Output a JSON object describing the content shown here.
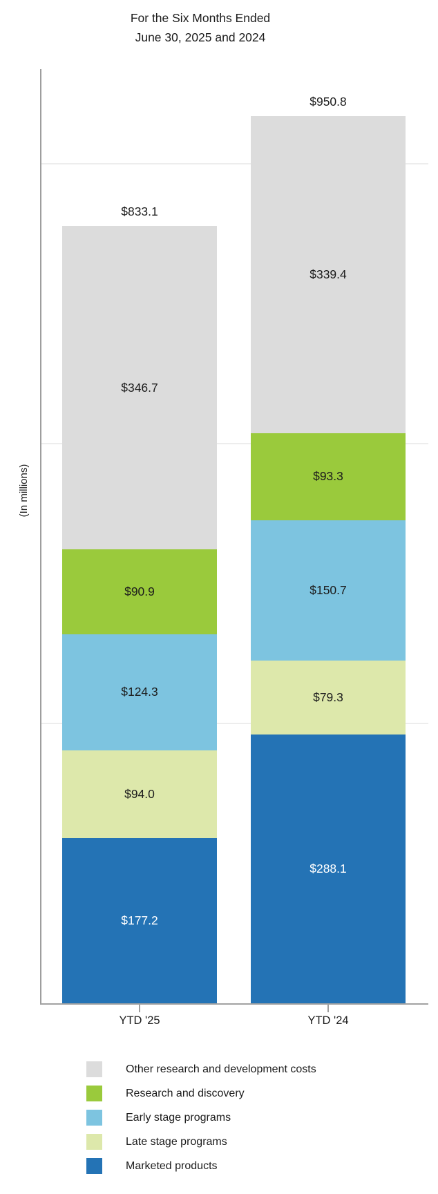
{
  "chart_data": {
    "type": "bar",
    "subtype": "stacked-vertical",
    "title": "For the Six Months Ended June 30, 2025 and 2024",
    "title_lines": [
      "For the Six Months Ended",
      "June 30, 2025 and 2024"
    ],
    "ylabel": "(In millions)",
    "xlabel": "",
    "categories": [
      "YTD '25",
      "YTD '24"
    ],
    "bar_totals": [
      833.1,
      950.8
    ],
    "total_labels": [
      "$833.1",
      "$950.8"
    ],
    "ylim": [
      0,
      1000
    ],
    "gridlines": [
      300,
      600,
      900
    ],
    "grid": "horizontal, no y-axis tick labels",
    "legend_position": "bottom-left",
    "series": [
      {
        "name": "Marketed products",
        "color": "#2473b5",
        "text_color": "#ffffff",
        "values": [
          177.2,
          288.1
        ],
        "value_labels": [
          "$177.2",
          "$288.1"
        ]
      },
      {
        "name": "Late stage programs",
        "color": "#dde8ab",
        "text_color": "#1c1c1c",
        "values": [
          94.0,
          79.3
        ],
        "value_labels": [
          "$94.0",
          "$79.3"
        ]
      },
      {
        "name": "Early stage programs",
        "color": "#7dc4e0",
        "text_color": "#1c1c1c",
        "values": [
          124.3,
          150.7
        ],
        "value_labels": [
          "$124.3",
          "$150.7"
        ]
      },
      {
        "name": "Research and discovery",
        "color": "#9aca3c",
        "text_color": "#1c1c1c",
        "values": [
          90.9,
          93.3
        ],
        "value_labels": [
          "$90.9",
          "$93.3"
        ]
      },
      {
        "name": "Other research and development costs",
        "color": "#dcdcdc",
        "text_color": "#1c1c1c",
        "values": [
          346.7,
          339.4
        ],
        "value_labels": [
          "$346.7",
          "$339.4"
        ]
      }
    ],
    "legend": [
      "Other research and development costs",
      "Research and discovery",
      "Early stage programs",
      "Late stage programs",
      "Marketed products"
    ]
  }
}
